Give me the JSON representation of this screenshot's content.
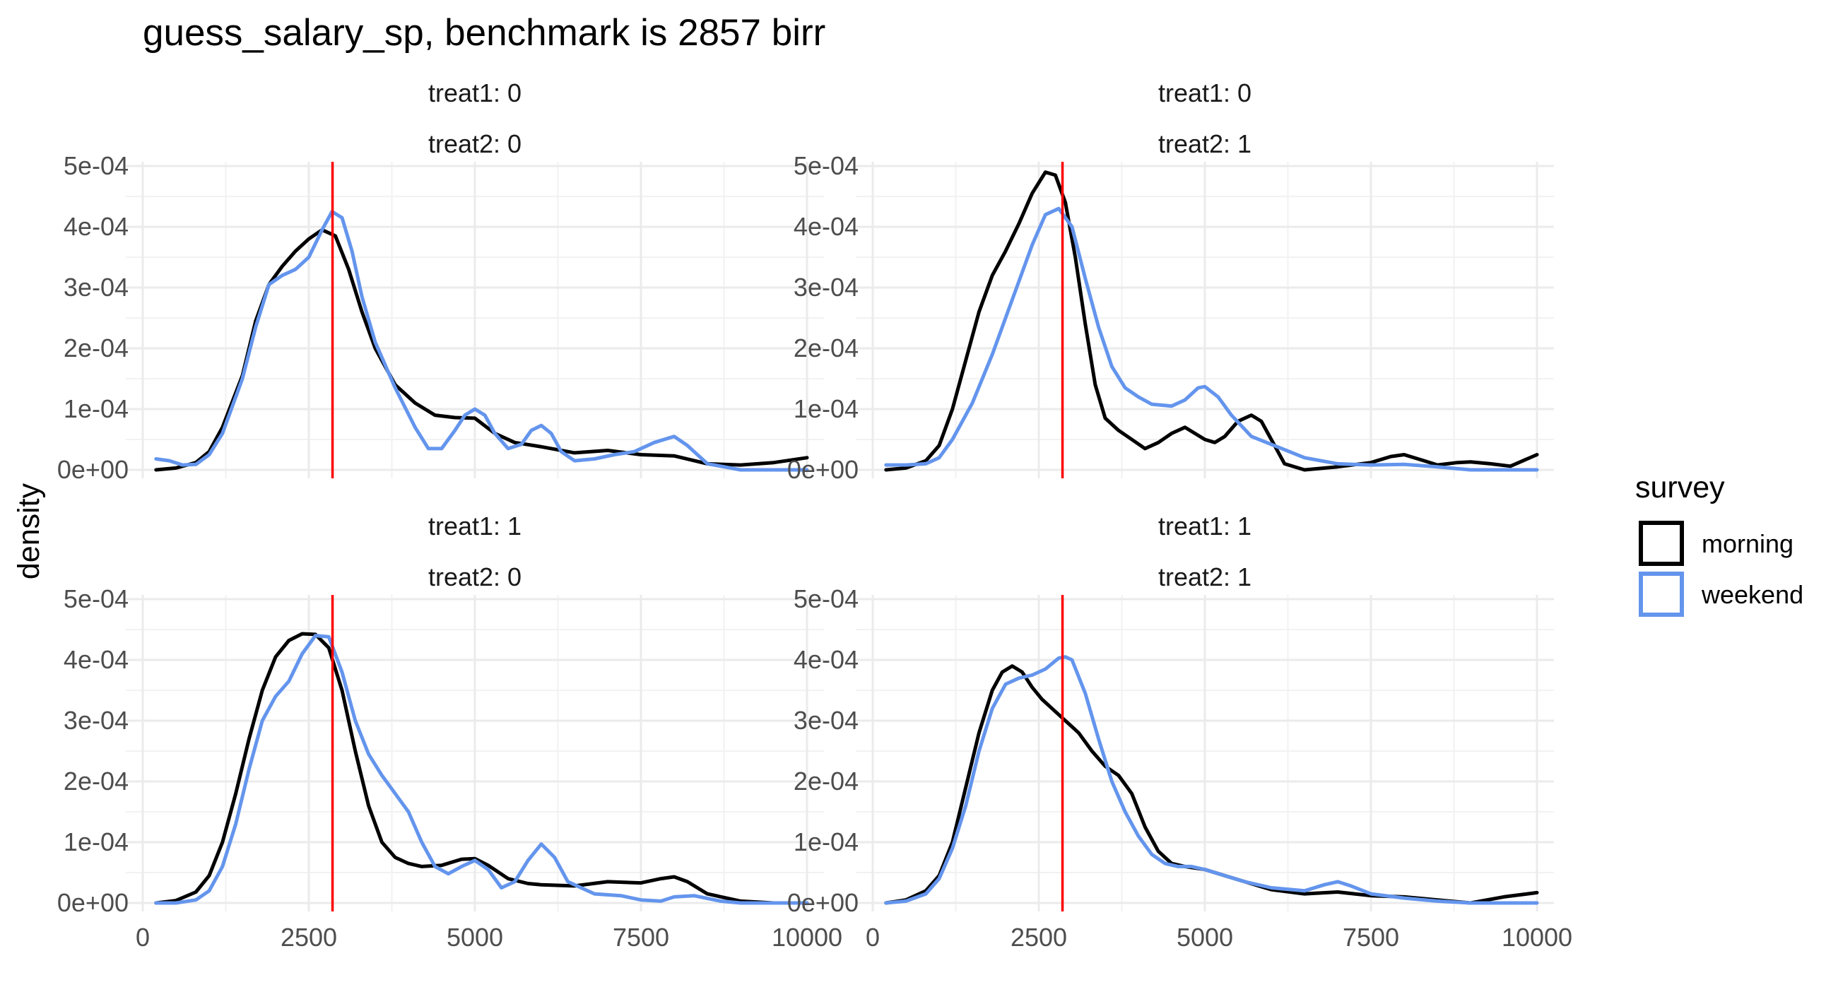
{
  "chart_data": {
    "type": "line",
    "title": "guess_salary_sp, benchmark is 2857 birr",
    "ylabel": "density",
    "xlabel": "",
    "xlim": [
      0,
      10000
    ],
    "ylim": [
      0,
      0.0005
    ],
    "x_ticks": [
      0,
      2500,
      5000,
      7500,
      10000
    ],
    "x_tick_labels": [
      "0",
      "2500",
      "5000",
      "7500",
      "10000"
    ],
    "y_ticks": [
      0,
      0.0001,
      0.0002,
      0.0003,
      0.0004,
      0.0005
    ],
    "y_tick_labels": [
      "0e+00",
      "1e-04",
      "2e-04",
      "3e-04",
      "4e-04",
      "5e-04"
    ],
    "grid": true,
    "reference_line": {
      "x": 2857,
      "color": "#ff0000"
    },
    "legend": {
      "title": "survey",
      "placement": "right",
      "entries": [
        {
          "name": "morning",
          "color": "#000000"
        },
        {
          "name": "weekend",
          "color": "#6495ed"
        }
      ]
    },
    "panels": [
      {
        "strip": [
          "treat1: 0",
          "treat2: 0"
        ],
        "series": [
          {
            "name": "morning",
            "color": "#000000",
            "x": [
              200,
              500,
              800,
              1000,
              1200,
              1500,
              1700,
              1900,
              2100,
              2300,
              2500,
              2700,
              2900,
              3100,
              3300,
              3500,
              3800,
              4100,
              4400,
              4700,
              5000,
              5300,
              5600,
              6000,
              6500,
              7000,
              7500,
              8000,
              8500,
              9000,
              9500,
              10000
            ],
            "y": [
              0.0,
              3e-06,
              1.2e-05,
              3e-05,
              7e-05,
              0.000155,
              0.000245,
              0.000305,
              0.000335,
              0.00036,
              0.00038,
              0.000395,
              0.000385,
              0.00033,
              0.00026,
              0.0002,
              0.00014,
              0.00011,
              9e-05,
              8.6e-05,
              8.5e-05,
              6e-05,
              4.5e-05,
              3.8e-05,
              2.8e-05,
              3.2e-05,
              2.5e-05,
              2.3e-05,
              1e-05,
              8e-06,
              1.2e-05,
              2e-05
            ]
          },
          {
            "name": "weekend",
            "color": "#6495ed",
            "x": [
              200,
              400,
              600,
              800,
              1000,
              1200,
              1500,
              1700,
              1900,
              2100,
              2300,
              2500,
              2700,
              2850,
              3000,
              3150,
              3300,
              3500,
              3800,
              4100,
              4300,
              4500,
              4700,
              4850,
              5000,
              5150,
              5300,
              5500,
              5700,
              5850,
              6000,
              6150,
              6300,
              6500,
              6800,
              7100,
              7400,
              7700,
              8000,
              8200,
              8500,
              9000,
              9500,
              10000
            ],
            "y": [
              1.8e-05,
              1.5e-05,
              8e-06,
              9e-06,
              2.5e-05,
              6e-05,
              0.00015,
              0.000235,
              0.000305,
              0.00032,
              0.00033,
              0.00035,
              0.000395,
              0.000425,
              0.000415,
              0.00036,
              0.000285,
              0.00021,
              0.000135,
              7e-05,
              3.5e-05,
              3.5e-05,
              6.5e-05,
              9e-05,
              0.0001,
              9e-05,
              6e-05,
              3.5e-05,
              4.2e-05,
              6.5e-05,
              7.3e-05,
              6e-05,
              3e-05,
              1.5e-05,
              1.8e-05,
              2.5e-05,
              3e-05,
              4.5e-05,
              5.5e-05,
              4e-05,
              1e-05,
              0.0,
              0.0,
              0.0
            ]
          }
        ]
      },
      {
        "strip": [
          "treat1: 0",
          "treat2: 1"
        ],
        "series": [
          {
            "name": "morning",
            "color": "#000000",
            "x": [
              200,
              500,
              800,
              1000,
              1200,
              1400,
              1600,
              1800,
              2000,
              2200,
              2400,
              2600,
              2750,
              2900,
              3050,
              3200,
              3350,
              3500,
              3700,
              3900,
              4100,
              4300,
              4500,
              4700,
              4850,
              5000,
              5150,
              5300,
              5500,
              5700,
              5850,
              6000,
              6200,
              6500,
              7000,
              7500,
              7800,
              8000,
              8300,
              8500,
              8800,
              9000,
              9300,
              9600,
              10000
            ],
            "y": [
              0.0,
              3e-06,
              1.5e-05,
              4e-05,
              0.0001,
              0.00018,
              0.00026,
              0.00032,
              0.00036,
              0.000405,
              0.000455,
              0.00049,
              0.000485,
              0.00044,
              0.00035,
              0.00024,
              0.00014,
              8.5e-05,
              6.5e-05,
              5e-05,
              3.5e-05,
              4.5e-05,
              6e-05,
              7e-05,
              6e-05,
              5e-05,
              4.5e-05,
              5.5e-05,
              8e-05,
              9e-05,
              8e-05,
              5e-05,
              1e-05,
              0.0,
              5e-06,
              1.2e-05,
              2.2e-05,
              2.5e-05,
              1.5e-05,
              8e-06,
              1.2e-05,
              1.3e-05,
              1e-05,
              6e-06,
              2.5e-05
            ]
          },
          {
            "name": "weekend",
            "color": "#6495ed",
            "x": [
              200,
              500,
              800,
              1000,
              1200,
              1500,
              1800,
              2100,
              2400,
              2600,
              2800,
              3000,
              3200,
              3400,
              3600,
              3800,
              4000,
              4200,
              4500,
              4700,
              4900,
              5000,
              5200,
              5400,
              5700,
              6000,
              6500,
              7000,
              7500,
              8000,
              8500,
              9000,
              9500,
              10000
            ],
            "y": [
              8e-06,
              8e-06,
              1e-05,
              2e-05,
              5e-05,
              0.00011,
              0.00019,
              0.00028,
              0.00037,
              0.00042,
              0.00043,
              0.0004,
              0.000315,
              0.000235,
              0.00017,
              0.000135,
              0.00012,
              0.000108,
              0.000105,
              0.000115,
              0.000135,
              0.000137,
              0.00012,
              9e-05,
              5.5e-05,
              4.2e-05,
              2e-05,
              1e-05,
              8e-06,
              9e-06,
              5e-06,
              0.0,
              0.0,
              0.0
            ]
          }
        ]
      },
      {
        "strip": [
          "treat1: 1",
          "treat2: 0"
        ],
        "series": [
          {
            "name": "morning",
            "color": "#000000",
            "x": [
              200,
              500,
              800,
              1000,
              1200,
              1400,
              1600,
              1800,
              2000,
              2200,
              2400,
              2600,
              2800,
              3000,
              3200,
              3400,
              3600,
              3800,
              4000,
              4200,
              4500,
              4800,
              5000,
              5200,
              5500,
              5800,
              6000,
              6500,
              7000,
              7500,
              7800,
              8000,
              8200,
              8500,
              9000,
              9500,
              10000
            ],
            "y": [
              0.0,
              4e-06,
              1.8e-05,
              4.5e-05,
              0.0001,
              0.00018,
              0.00027,
              0.00035,
              0.000405,
              0.000432,
              0.000443,
              0.000442,
              0.00042,
              0.00035,
              0.00025,
              0.00016,
              0.0001,
              7.5e-05,
              6.5e-05,
              6e-05,
              6.2e-05,
              7.2e-05,
              7.3e-05,
              6.2e-05,
              4e-05,
              3.2e-05,
              3e-05,
              2.8e-05,
              3.5e-05,
              3.3e-05,
              4e-05,
              4.3e-05,
              3.5e-05,
              1.5e-05,
              3e-06,
              0.0,
              0.0
            ]
          },
          {
            "name": "weekend",
            "color": "#6495ed",
            "x": [
              200,
              500,
              800,
              1000,
              1200,
              1400,
              1600,
              1800,
              2000,
              2200,
              2400,
              2600,
              2800,
              3000,
              3200,
              3400,
              3600,
              3800,
              4000,
              4200,
              4400,
              4600,
              4800,
              5000,
              5200,
              5400,
              5600,
              5800,
              6000,
              6200,
              6400,
              6800,
              7200,
              7500,
              7800,
              8000,
              8300,
              8700,
              9000,
              9500,
              10000
            ],
            "y": [
              0.0,
              0.0,
              5e-06,
              2e-05,
              6e-05,
              0.00013,
              0.00022,
              0.0003,
              0.00034,
              0.000365,
              0.00041,
              0.00044,
              0.000438,
              0.00038,
              0.0003,
              0.000245,
              0.00021,
              0.00018,
              0.00015,
              0.0001,
              6e-05,
              4.8e-05,
              6e-05,
              7e-05,
              5.5e-05,
              2.5e-05,
              3.5e-05,
              7e-05,
              9.7e-05,
              7.5e-05,
              3.5e-05,
              1.5e-05,
              1.2e-05,
              5e-06,
              3e-06,
              1e-05,
              1.2e-05,
              3e-06,
              0.0,
              0.0,
              0.0
            ]
          }
        ]
      },
      {
        "strip": [
          "treat1: 1",
          "treat2: 1"
        ],
        "series": [
          {
            "name": "morning",
            "color": "#000000",
            "x": [
              200,
              500,
              800,
              1000,
              1200,
              1400,
              1600,
              1800,
              1950,
              2100,
              2250,
              2400,
              2550,
              2700,
              2900,
              3100,
              3300,
              3500,
              3700,
              3900,
              4100,
              4300,
              4500,
              4700,
              5000,
              5300,
              5600,
              6000,
              6500,
              7000,
              7500,
              8000,
              8500,
              9000,
              9500,
              10000
            ],
            "y": [
              0.0,
              5e-06,
              2e-05,
              4.5e-05,
              0.0001,
              0.00019,
              0.00028,
              0.00035,
              0.00038,
              0.00039,
              0.00038,
              0.000355,
              0.000335,
              0.00032,
              0.0003,
              0.00028,
              0.00025,
              0.000225,
              0.00021,
              0.00018,
              0.000125,
              8.5e-05,
              6.5e-05,
              6e-05,
              5.5e-05,
              4.5e-05,
              3.5e-05,
              2.2e-05,
              1.5e-05,
              1.8e-05,
              1.2e-05,
              1e-05,
              5e-06,
              0.0,
              1e-05,
              1.7e-05
            ]
          },
          {
            "name": "weekend",
            "color": "#6495ed",
            "x": [
              200,
              500,
              800,
              1000,
              1200,
              1400,
              1600,
              1800,
              2000,
              2200,
              2400,
              2600,
              2800,
              2900,
              3000,
              3200,
              3400,
              3600,
              3800,
              4000,
              4200,
              4400,
              4600,
              4800,
              5000,
              5300,
              5600,
              6000,
              6500,
              6800,
              7000,
              7200,
              7500,
              8000,
              8500,
              9000,
              9500,
              10000
            ],
            "y": [
              0.0,
              3e-06,
              1.5e-05,
              4e-05,
              9e-05,
              0.00016,
              0.00025,
              0.00032,
              0.00036,
              0.00037,
              0.000375,
              0.000385,
              0.000403,
              0.000405,
              0.0004,
              0.000345,
              0.00027,
              0.0002,
              0.00015,
              0.00011,
              8e-05,
              6.5e-05,
              6e-05,
              6e-05,
              5.5e-05,
              4.5e-05,
              3.5e-05,
              2.5e-05,
              2e-05,
              3e-05,
              3.5e-05,
              2.8e-05,
              1.5e-05,
              8e-06,
              3e-06,
              0.0,
              0.0,
              0.0
            ]
          }
        ]
      }
    ]
  }
}
